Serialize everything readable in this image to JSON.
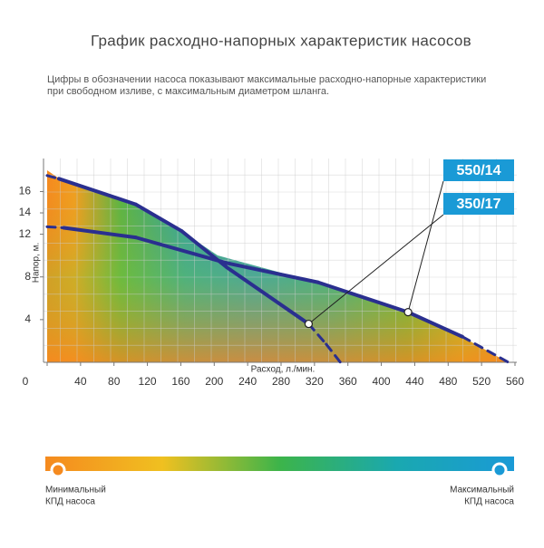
{
  "chart_data": {
    "type": "line",
    "title": "График расходно-напорных характеристик насосов",
    "subtitle": [
      "Цифры в обозначении насоса показывают максимальные расходно-напорные характеристики",
      "при свободном изливе, с максимальным диаметром шланга."
    ],
    "x_label": "Расход, л./мин.",
    "y_label": "Напор, м.",
    "xlim": [
      0,
      560
    ],
    "ylim": [
      0,
      18.5
    ],
    "xticks": [
      0,
      40,
      80,
      120,
      160,
      200,
      240,
      280,
      320,
      360,
      400,
      440,
      480,
      520,
      560
    ],
    "yticks": [
      4,
      8,
      12,
      14,
      16
    ],
    "series": [
      {
        "name": "550/14",
        "color": "#2a2f8f",
        "marker_index": 5,
        "x": [
          0,
          20,
          106,
          215,
          324,
          432,
          497,
          552
        ],
        "values": [
          12.7,
          12.6,
          11.7,
          9.3,
          7.5,
          4.7,
          2.4,
          0
        ],
        "dashed": [
          false,
          true,
          false,
          false,
          false,
          false,
          false,
          true
        ]
      },
      {
        "name": "350/17",
        "color": "#2a2f8f",
        "marker_index": 5,
        "x": [
          0,
          14,
          106,
          161,
          215,
          313,
          334,
          351
        ],
        "values": [
          17.5,
          17.2,
          14.8,
          12.3,
          8.9,
          3.6,
          1.7,
          0
        ],
        "dashed": [
          false,
          true,
          false,
          false,
          false,
          false,
          true,
          true
        ]
      }
    ],
    "label_box_color": "#1a9ad6",
    "efficiency_scale": {
      "min_label": [
        "Минимальный",
        "КПД насоса"
      ],
      "max_label": [
        "Максимальный",
        "КПД насоса"
      ]
    }
  }
}
